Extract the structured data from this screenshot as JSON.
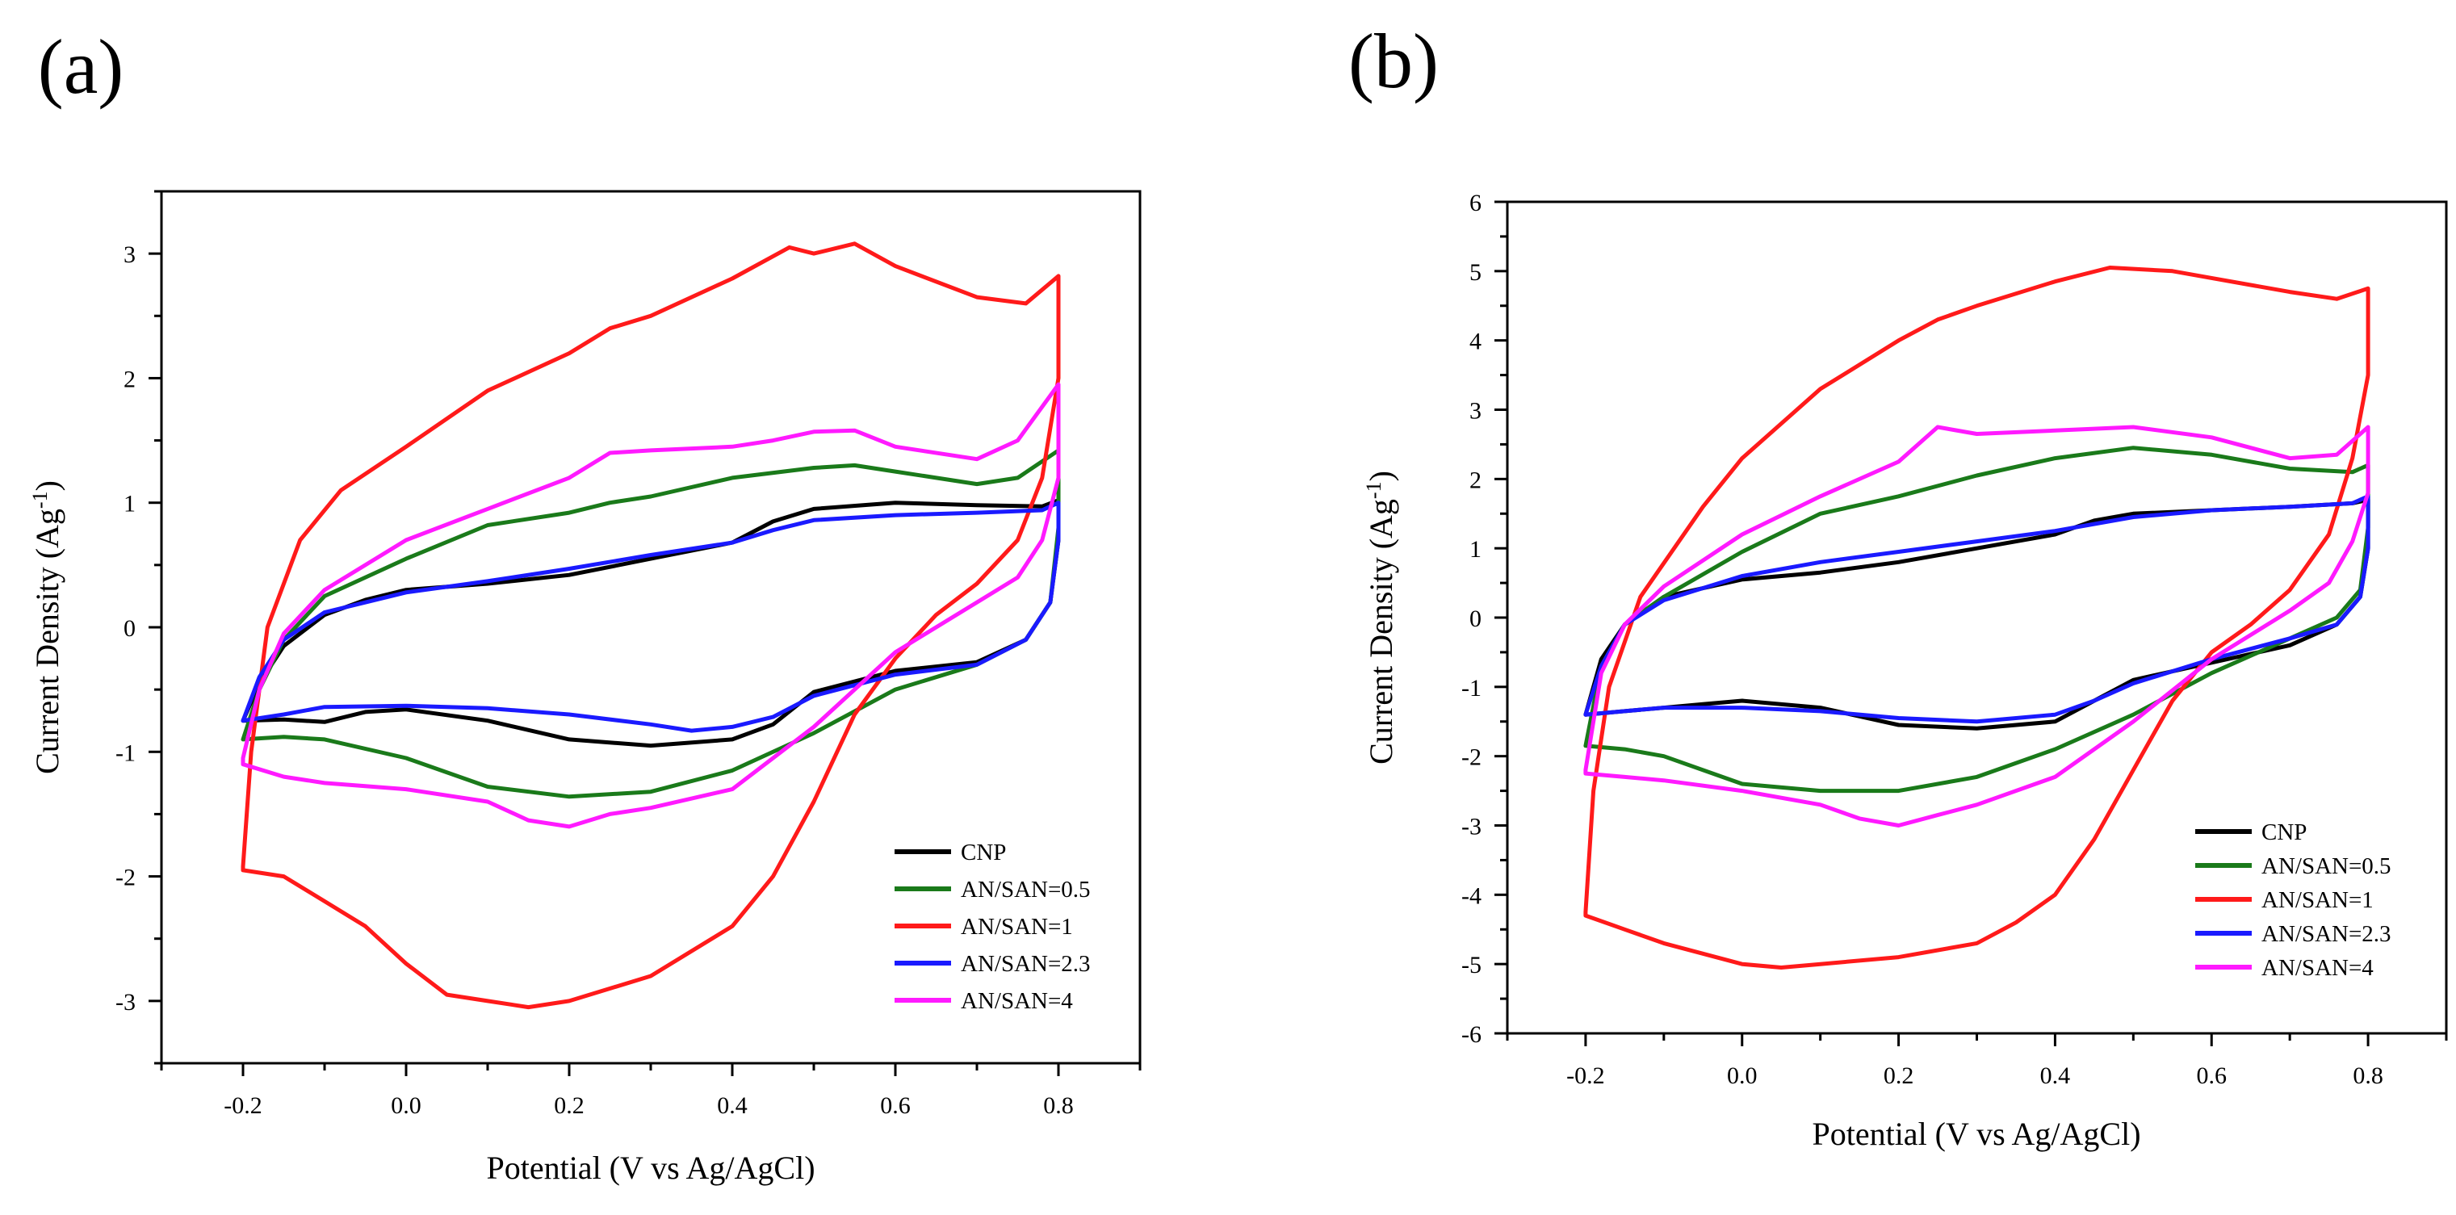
{
  "colors": {
    "CNP": "#000000",
    "AN/SAN=0.5": "#1a7a1a",
    "AN/SAN=1": "#ff1a1a",
    "AN/SAN=2.3": "#1a1aff",
    "AN/SAN=4": "#ff1aff"
  },
  "chart_data": [
    {
      "panel": "(a)",
      "type": "line",
      "xlabel": "Potential (V vs Ag/AgCl)",
      "ylabel": "Current Density (Ag-1)",
      "xlim": [
        -0.3,
        0.9
      ],
      "ylim": [
        -3.5,
        3.5
      ],
      "xticks": [
        -0.2,
        0.0,
        0.2,
        0.4,
        0.6,
        0.8
      ],
      "xtick_labels": [
        "-0.2",
        "0.0",
        "0.2",
        "0.4",
        "0.6",
        "0.8"
      ],
      "yticks": [
        -3,
        -2,
        -1,
        0,
        1,
        2,
        3
      ],
      "ytick_labels": [
        "-3",
        "-2",
        "-1",
        "0",
        "1",
        "2",
        "3"
      ],
      "legend_position": "bottom-right",
      "series": [
        {
          "name": "CNP",
          "x": [
            -0.2,
            -0.18,
            -0.15,
            -0.1,
            -0.05,
            0.0,
            0.1,
            0.2,
            0.3,
            0.4,
            0.45,
            0.5,
            0.6,
            0.7,
            0.78,
            0.8,
            0.8,
            0.79,
            0.76,
            0.7,
            0.6,
            0.5,
            0.45,
            0.4,
            0.3,
            0.2,
            0.1,
            0.0,
            -0.05,
            -0.1,
            -0.15,
            -0.2
          ],
          "y": [
            -0.75,
            -0.45,
            -0.15,
            0.1,
            0.22,
            0.3,
            0.35,
            0.42,
            0.55,
            0.68,
            0.85,
            0.95,
            1.0,
            0.98,
            0.97,
            1.02,
            0.7,
            0.2,
            -0.1,
            -0.28,
            -0.35,
            -0.52,
            -0.78,
            -0.9,
            -0.95,
            -0.9,
            -0.75,
            -0.66,
            -0.68,
            -0.76,
            -0.74,
            -0.75
          ]
        },
        {
          "name": "AN/SAN=0.5",
          "x": [
            -0.2,
            -0.18,
            -0.15,
            -0.1,
            0.0,
            0.1,
            0.2,
            0.25,
            0.3,
            0.4,
            0.5,
            0.55,
            0.6,
            0.7,
            0.75,
            0.8,
            0.8,
            0.79,
            0.76,
            0.7,
            0.6,
            0.5,
            0.4,
            0.3,
            0.2,
            0.1,
            0.0,
            -0.1,
            -0.15,
            -0.2
          ],
          "y": [
            -0.9,
            -0.5,
            -0.1,
            0.25,
            0.55,
            0.82,
            0.92,
            1.0,
            1.05,
            1.2,
            1.28,
            1.3,
            1.25,
            1.15,
            1.2,
            1.42,
            0.8,
            0.2,
            -0.1,
            -0.3,
            -0.5,
            -0.85,
            -1.15,
            -1.32,
            -1.36,
            -1.28,
            -1.05,
            -0.9,
            -0.88,
            -0.9
          ]
        },
        {
          "name": "AN/SAN=1",
          "x": [
            -0.2,
            -0.19,
            -0.17,
            -0.13,
            -0.08,
            0.0,
            0.1,
            0.2,
            0.25,
            0.3,
            0.4,
            0.47,
            0.5,
            0.55,
            0.6,
            0.7,
            0.76,
            0.8,
            0.8,
            0.78,
            0.75,
            0.7,
            0.65,
            0.6,
            0.55,
            0.5,
            0.45,
            0.4,
            0.3,
            0.2,
            0.15,
            0.1,
            0.05,
            0.0,
            -0.05,
            -0.1,
            -0.15,
            -0.2,
            -0.2
          ],
          "y": [
            -1.92,
            -1.0,
            0.0,
            0.7,
            1.1,
            1.45,
            1.9,
            2.2,
            2.4,
            2.5,
            2.8,
            3.05,
            3.0,
            3.08,
            2.9,
            2.65,
            2.6,
            2.82,
            2.0,
            1.2,
            0.7,
            0.35,
            0.1,
            -0.25,
            -0.7,
            -1.4,
            -2.0,
            -2.4,
            -2.8,
            -3.0,
            -3.05,
            -3.0,
            -2.95,
            -2.7,
            -2.4,
            -2.2,
            -2.0,
            -1.95,
            -1.92
          ]
        },
        {
          "name": "AN/SAN=2.3",
          "x": [
            -0.2,
            -0.18,
            -0.15,
            -0.1,
            0.0,
            0.1,
            0.2,
            0.3,
            0.4,
            0.45,
            0.5,
            0.6,
            0.7,
            0.78,
            0.8,
            0.8,
            0.79,
            0.76,
            0.7,
            0.6,
            0.5,
            0.45,
            0.4,
            0.35,
            0.3,
            0.2,
            0.1,
            0.0,
            -0.1,
            -0.15,
            -0.2
          ],
          "y": [
            -0.75,
            -0.4,
            -0.1,
            0.12,
            0.28,
            0.37,
            0.47,
            0.58,
            0.68,
            0.78,
            0.86,
            0.9,
            0.92,
            0.94,
            1.0,
            0.7,
            0.2,
            -0.1,
            -0.3,
            -0.38,
            -0.55,
            -0.72,
            -0.8,
            -0.83,
            -0.78,
            -0.7,
            -0.65,
            -0.63,
            -0.64,
            -0.7,
            -0.75
          ]
        },
        {
          "name": "AN/SAN=4",
          "x": [
            -0.2,
            -0.18,
            -0.15,
            -0.1,
            0.0,
            0.1,
            0.2,
            0.25,
            0.3,
            0.4,
            0.45,
            0.5,
            0.55,
            0.6,
            0.7,
            0.75,
            0.8,
            0.8,
            0.78,
            0.75,
            0.7,
            0.6,
            0.5,
            0.4,
            0.3,
            0.25,
            0.2,
            0.15,
            0.1,
            0.0,
            -0.1,
            -0.15,
            -0.2,
            -0.2
          ],
          "y": [
            -1.05,
            -0.5,
            -0.05,
            0.3,
            0.7,
            0.95,
            1.2,
            1.4,
            1.42,
            1.45,
            1.5,
            1.57,
            1.58,
            1.45,
            1.35,
            1.5,
            1.95,
            1.2,
            0.7,
            0.4,
            0.2,
            -0.2,
            -0.8,
            -1.3,
            -1.45,
            -1.5,
            -1.6,
            -1.55,
            -1.4,
            -1.3,
            -1.25,
            -1.2,
            -1.1,
            -1.05
          ]
        }
      ]
    },
    {
      "panel": "(b)",
      "type": "line",
      "xlabel": "Potential (V vs Ag/AgCl)",
      "ylabel": "Current Density (Ag-1)",
      "xlim": [
        -0.3,
        0.9
      ],
      "ylim": [
        -6,
        6
      ],
      "xticks": [
        -0.2,
        0.0,
        0.2,
        0.4,
        0.6,
        0.8
      ],
      "xtick_labels": [
        "-0.2",
        "0.0",
        "0.2",
        "0.4",
        "0.6",
        "0.8"
      ],
      "yticks": [
        -6,
        -5,
        -4,
        -3,
        -2,
        -1,
        0,
        1,
        2,
        3,
        4,
        5,
        6
      ],
      "ytick_labels": [
        "-6",
        "-5",
        "-4",
        "-3",
        "-2",
        "-1",
        "0",
        "1",
        "2",
        "3",
        "4",
        "5",
        "6"
      ],
      "legend_position": "bottom-right",
      "series": [
        {
          "name": "CNP",
          "x": [
            -0.2,
            -0.18,
            -0.15,
            -0.1,
            0.0,
            0.1,
            0.2,
            0.3,
            0.4,
            0.45,
            0.5,
            0.6,
            0.7,
            0.78,
            0.8,
            0.8,
            0.79,
            0.76,
            0.7,
            0.6,
            0.5,
            0.45,
            0.4,
            0.3,
            0.2,
            0.1,
            0.0,
            -0.05,
            -0.1,
            -0.15,
            -0.2
          ],
          "y": [
            -1.4,
            -0.6,
            -0.1,
            0.3,
            0.55,
            0.65,
            0.8,
            1.0,
            1.2,
            1.4,
            1.5,
            1.55,
            1.6,
            1.65,
            1.7,
            1.0,
            0.3,
            -0.1,
            -0.4,
            -0.65,
            -0.9,
            -1.2,
            -1.5,
            -1.6,
            -1.55,
            -1.3,
            -1.2,
            -1.25,
            -1.3,
            -1.35,
            -1.4
          ]
        },
        {
          "name": "AN/SAN=0.5",
          "x": [
            -0.2,
            -0.18,
            -0.15,
            -0.1,
            0.0,
            0.1,
            0.2,
            0.3,
            0.4,
            0.5,
            0.6,
            0.7,
            0.78,
            0.8,
            0.8,
            0.79,
            0.76,
            0.7,
            0.6,
            0.5,
            0.4,
            0.3,
            0.2,
            0.1,
            0.0,
            -0.1,
            -0.15,
            -0.2
          ],
          "y": [
            -1.85,
            -0.7,
            -0.1,
            0.3,
            0.95,
            1.5,
            1.75,
            2.05,
            2.3,
            2.45,
            2.35,
            2.15,
            2.1,
            2.2,
            1.3,
            0.4,
            0.0,
            -0.3,
            -0.8,
            -1.4,
            -1.9,
            -2.3,
            -2.5,
            -2.5,
            -2.4,
            -2.0,
            -1.9,
            -1.85
          ]
        },
        {
          "name": "AN/SAN=1",
          "x": [
            -0.2,
            -0.19,
            -0.17,
            -0.13,
            -0.05,
            0.0,
            0.1,
            0.2,
            0.25,
            0.3,
            0.4,
            0.47,
            0.55,
            0.6,
            0.7,
            0.76,
            0.8,
            0.8,
            0.78,
            0.75,
            0.7,
            0.65,
            0.6,
            0.55,
            0.5,
            0.45,
            0.4,
            0.35,
            0.3,
            0.2,
            0.1,
            0.05,
            0.0,
            -0.1,
            -0.15,
            -0.2,
            -0.2
          ],
          "y": [
            -4.25,
            -2.5,
            -1.0,
            0.3,
            1.6,
            2.3,
            3.3,
            4.0,
            4.3,
            4.5,
            4.85,
            5.05,
            5.0,
            4.9,
            4.7,
            4.6,
            4.75,
            3.5,
            2.3,
            1.2,
            0.4,
            -0.1,
            -0.5,
            -1.2,
            -2.2,
            -3.2,
            -4.0,
            -4.4,
            -4.7,
            -4.9,
            -5.0,
            -5.05,
            -5.0,
            -4.7,
            -4.5,
            -4.3,
            -4.25
          ]
        },
        {
          "name": "AN/SAN=2.3",
          "x": [
            -0.2,
            -0.18,
            -0.15,
            -0.1,
            0.0,
            0.1,
            0.2,
            0.3,
            0.4,
            0.5,
            0.6,
            0.7,
            0.78,
            0.8,
            0.8,
            0.79,
            0.76,
            0.7,
            0.6,
            0.5,
            0.45,
            0.4,
            0.3,
            0.2,
            0.1,
            0.0,
            -0.1,
            -0.15,
            -0.2
          ],
          "y": [
            -1.4,
            -0.7,
            -0.1,
            0.25,
            0.6,
            0.8,
            0.95,
            1.1,
            1.25,
            1.45,
            1.55,
            1.6,
            1.65,
            1.75,
            1.0,
            0.3,
            -0.1,
            -0.3,
            -0.6,
            -0.95,
            -1.2,
            -1.4,
            -1.5,
            -1.45,
            -1.35,
            -1.3,
            -1.3,
            -1.35,
            -1.4
          ]
        },
        {
          "name": "AN/SAN=4",
          "x": [
            -0.2,
            -0.18,
            -0.15,
            -0.1,
            0.0,
            0.1,
            0.2,
            0.25,
            0.3,
            0.4,
            0.5,
            0.6,
            0.7,
            0.76,
            0.8,
            0.8,
            0.78,
            0.75,
            0.7,
            0.6,
            0.5,
            0.4,
            0.3,
            0.25,
            0.2,
            0.15,
            0.1,
            0.0,
            -0.1,
            -0.15,
            -0.2,
            -0.2
          ],
          "y": [
            -2.2,
            -0.8,
            -0.1,
            0.45,
            1.2,
            1.75,
            2.25,
            2.75,
            2.65,
            2.7,
            2.75,
            2.6,
            2.3,
            2.35,
            2.75,
            1.8,
            1.1,
            0.5,
            0.1,
            -0.6,
            -1.5,
            -2.3,
            -2.7,
            -2.85,
            -3.0,
            -2.9,
            -2.7,
            -2.5,
            -2.35,
            -2.3,
            -2.25,
            -2.2
          ]
        }
      ]
    }
  ]
}
